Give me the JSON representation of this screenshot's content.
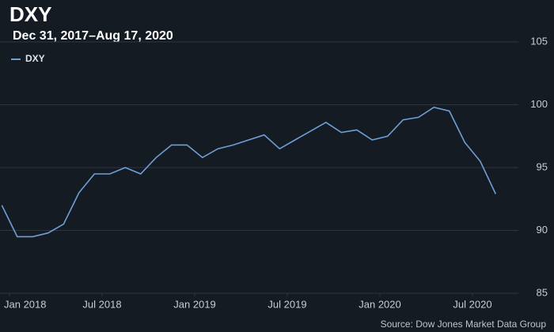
{
  "chart_data": {
    "type": "line",
    "title": "DXY",
    "subtitle": "Dec 31, 2017–Aug 17, 2020",
    "source": "Source: Dow Jones Market Data Group",
    "x": [
      "2017-12",
      "2018-01",
      "2018-02",
      "2018-03",
      "2018-04",
      "2018-05",
      "2018-06",
      "2018-07",
      "2018-08",
      "2018-09",
      "2018-10",
      "2018-11",
      "2018-12",
      "2019-01",
      "2019-02",
      "2019-03",
      "2019-04",
      "2019-05",
      "2019-06",
      "2019-07",
      "2019-08",
      "2019-09",
      "2019-10",
      "2019-11",
      "2019-12",
      "2020-01",
      "2020-02",
      "2020-03",
      "2020-04",
      "2020-05",
      "2020-06",
      "2020-07",
      "2020-08"
    ],
    "series": [
      {
        "name": "DXY",
        "color": "#6f9fd8",
        "values": [
          92.0,
          89.5,
          89.5,
          89.8,
          90.5,
          93.0,
          94.5,
          94.5,
          95.0,
          94.5,
          95.8,
          96.8,
          96.8,
          95.8,
          96.5,
          96.8,
          97.2,
          97.6,
          96.5,
          97.2,
          97.9,
          98.6,
          97.8,
          98.0,
          97.2,
          97.5,
          98.8,
          99.0,
          99.8,
          99.5,
          97.0,
          95.5,
          92.9
        ]
      }
    ],
    "xticks": [
      {
        "value": "2018-01",
        "label": "Jan 2018"
      },
      {
        "value": "2018-07",
        "label": "Jul 2018"
      },
      {
        "value": "2019-01",
        "label": "Jan 2019"
      },
      {
        "value": "2019-07",
        "label": "Jul 2019"
      },
      {
        "value": "2020-01",
        "label": "Jan 2020"
      },
      {
        "value": "2020-07",
        "label": "Jul 2020"
      }
    ],
    "ylim": [
      85,
      105
    ],
    "yticks": [
      85,
      90,
      95,
      100,
      105
    ],
    "grid": true,
    "legend": "top-left"
  }
}
